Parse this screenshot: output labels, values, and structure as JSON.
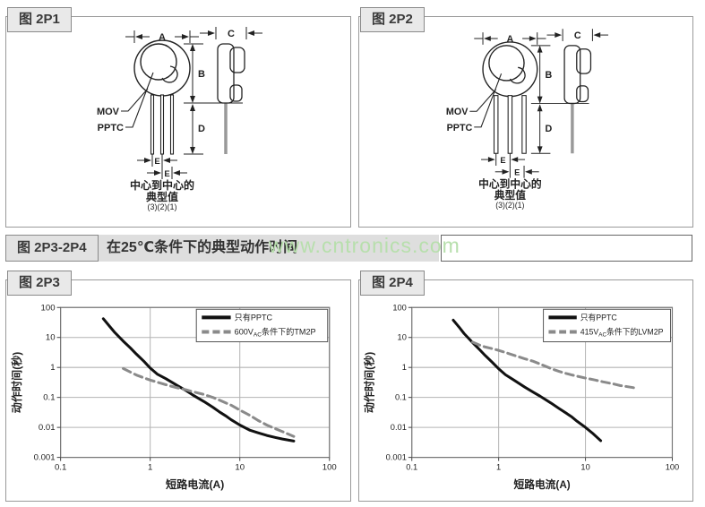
{
  "panels": {
    "p1": {
      "tag": "图 2P1"
    },
    "p2": {
      "tag": "图 2P2"
    },
    "p3": {
      "tag": "图 2P3"
    },
    "p4": {
      "tag": "图 2P4"
    }
  },
  "banner": {
    "tag": "图 2P3-2P4",
    "title": "在25℃条件下的典型动作时间",
    "watermark": "www.cntronics.com"
  },
  "diagram": {
    "dim_a": "A",
    "dim_b": "B",
    "dim_c": "C",
    "dim_d": "D",
    "dim_e1": "E",
    "dim_e2": "E",
    "mov_label": "MOV",
    "pptc_label": "PPTC",
    "caption_line1": "中心到中心的",
    "caption_line2": "典型值",
    "caption_line3": "(3)(2)(1)"
  },
  "colors": {
    "solid_curve": "#111111",
    "dashed_curve": "#8a8a8a",
    "grid": "#b3b3b3",
    "frame": "#777777",
    "watermark_green": "#b7dfac"
  },
  "chart_data": [
    {
      "id": "p3",
      "type": "line",
      "x_scale": "log",
      "y_scale": "log",
      "xlim": [
        0.1,
        100
      ],
      "ylim": [
        0.001,
        100
      ],
      "x_ticks": [
        "0.1",
        "1",
        "10",
        "100"
      ],
      "y_ticks": [
        "100",
        "10",
        "1",
        "0.1",
        "0.01",
        "0.001"
      ],
      "xlabel": "短路电流(A)",
      "ylabel": "动作时间(秒)",
      "grid": true,
      "legend_position": "top-right",
      "series": [
        {
          "name_pre": "只有PPTC",
          "name_sub": "",
          "name_post": "",
          "style": "solid",
          "color": "#111111",
          "points": [
            [
              0.3,
              42
            ],
            [
              0.35,
              24
            ],
            [
              0.4,
              15
            ],
            [
              0.5,
              7.5
            ],
            [
              0.6,
              4.5
            ],
            [
              0.7,
              2.8
            ],
            [
              0.85,
              1.6
            ],
            [
              1,
              0.95
            ],
            [
              1.2,
              0.6
            ],
            [
              1.5,
              0.42
            ],
            [
              2,
              0.25
            ],
            [
              2.5,
              0.17
            ],
            [
              3,
              0.12
            ],
            [
              4,
              0.072
            ],
            [
              5,
              0.047
            ],
            [
              6,
              0.032
            ],
            [
              7,
              0.024
            ],
            [
              8,
              0.018
            ],
            [
              10,
              0.012
            ],
            [
              13,
              0.008
            ],
            [
              16,
              0.0066
            ],
            [
              20,
              0.0054
            ],
            [
              25,
              0.0046
            ],
            [
              30,
              0.0041
            ],
            [
              40,
              0.0035
            ]
          ]
        },
        {
          "name_pre": "600V",
          "name_sub": "AC",
          "name_post": "条件下的TM2P",
          "style": "dashed",
          "color": "#8a8a8a",
          "points": [
            [
              0.5,
              0.92
            ],
            [
              0.6,
              0.7
            ],
            [
              0.7,
              0.56
            ],
            [
              0.85,
              0.45
            ],
            [
              1,
              0.38
            ],
            [
              1.3,
              0.3
            ],
            [
              1.6,
              0.25
            ],
            [
              2,
              0.21
            ],
            [
              2.5,
              0.18
            ],
            [
              3,
              0.155
            ],
            [
              4,
              0.125
            ],
            [
              5,
              0.1
            ],
            [
              6,
              0.08
            ],
            [
              7,
              0.065
            ],
            [
              8,
              0.055
            ],
            [
              10,
              0.038
            ],
            [
              13,
              0.025
            ],
            [
              16,
              0.017
            ],
            [
              20,
              0.012
            ],
            [
              25,
              0.009
            ],
            [
              30,
              0.0072
            ],
            [
              40,
              0.005
            ]
          ]
        }
      ]
    },
    {
      "id": "p4",
      "type": "line",
      "x_scale": "log",
      "y_scale": "log",
      "xlim": [
        0.1,
        100
      ],
      "ylim": [
        0.001,
        100
      ],
      "x_ticks": [
        "0.1",
        "1",
        "10",
        "100"
      ],
      "y_ticks": [
        "100",
        "10",
        "1",
        "0.1",
        "0.01",
        "0.001"
      ],
      "xlabel": "短路电流(A)",
      "ylabel": "动作时间(秒)",
      "grid": true,
      "legend_position": "top-right",
      "series": [
        {
          "name_pre": "只有PPTC",
          "name_sub": "",
          "name_post": "",
          "style": "solid",
          "color": "#111111",
          "points": [
            [
              0.3,
              38
            ],
            [
              0.35,
              22
            ],
            [
              0.4,
              13.5
            ],
            [
              0.5,
              6.8
            ],
            [
              0.6,
              4
            ],
            [
              0.7,
              2.5
            ],
            [
              0.85,
              1.45
            ],
            [
              1,
              0.9
            ],
            [
              1.2,
              0.57
            ],
            [
              1.5,
              0.38
            ],
            [
              2,
              0.22
            ],
            [
              2.5,
              0.15
            ],
            [
              3,
              0.11
            ],
            [
              4,
              0.065
            ],
            [
              5,
              0.042
            ],
            [
              6,
              0.03
            ],
            [
              7,
              0.022
            ],
            [
              8,
              0.016
            ],
            [
              10,
              0.01
            ],
            [
              12,
              0.0065
            ],
            [
              15,
              0.0036
            ]
          ]
        },
        {
          "name_pre": "415V",
          "name_sub": "AC",
          "name_post": "条件下的LVM2P",
          "style": "dashed",
          "color": "#8a8a8a",
          "points": [
            [
              0.5,
              7
            ],
            [
              0.6,
              5.6
            ],
            [
              0.7,
              4.8
            ],
            [
              0.85,
              4.2
            ],
            [
              1,
              3.7
            ],
            [
              1.3,
              2.9
            ],
            [
              1.6,
              2.4
            ],
            [
              2,
              1.95
            ],
            [
              2.5,
              1.6
            ],
            [
              3,
              1.3
            ],
            [
              4,
              0.92
            ],
            [
              5,
              0.73
            ],
            [
              6,
              0.63
            ],
            [
              7,
              0.56
            ],
            [
              8,
              0.51
            ],
            [
              10,
              0.44
            ],
            [
              13,
              0.38
            ],
            [
              16,
              0.33
            ],
            [
              20,
              0.29
            ],
            [
              25,
              0.25
            ],
            [
              30,
              0.23
            ],
            [
              40,
              0.2
            ]
          ]
        }
      ]
    }
  ]
}
